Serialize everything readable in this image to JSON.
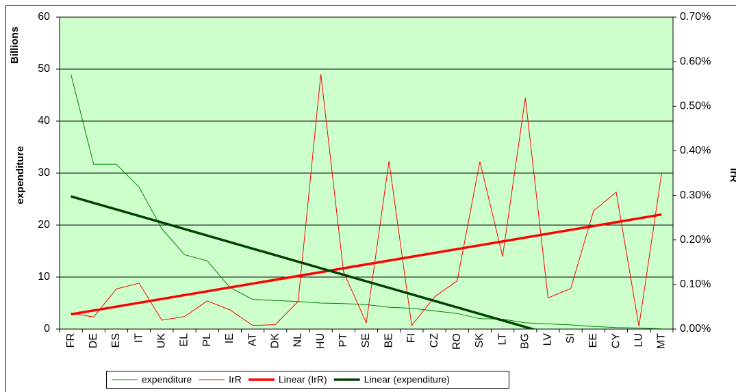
{
  "chart_data": {
    "type": "line",
    "categories": [
      "FR",
      "DE",
      "ES",
      "IT",
      "UK",
      "EL",
      "PL",
      "IE",
      "AT",
      "DK",
      "NL",
      "HU",
      "PT",
      "SE",
      "BE",
      "FI",
      "CZ",
      "RO",
      "SK",
      "LT",
      "BG",
      "LV",
      "SI",
      "EE",
      "CY",
      "LU",
      "MT"
    ],
    "y_label_top": "Billions",
    "y_label": "expenditure",
    "y2_label": "IrR",
    "ylim": [
      0,
      60
    ],
    "yticks": [
      0,
      10,
      20,
      30,
      40,
      50,
      60
    ],
    "y2lim": [
      0,
      0.7
    ],
    "y2ticks": [
      {
        "value": 0,
        "label": "0.00%"
      },
      {
        "value": 0.1,
        "label": "0.10%"
      },
      {
        "value": 0.2,
        "label": "0.20%"
      },
      {
        "value": 0.3,
        "label": "0.30%"
      },
      {
        "value": 0.4,
        "label": "0.40%"
      },
      {
        "value": 0.5,
        "label": "0.50%"
      },
      {
        "value": 0.6,
        "label": "0.60%"
      },
      {
        "value": 0.7,
        "label": "0.70%"
      }
    ],
    "grid": true,
    "background": "#ccffcc",
    "legend": "bottom",
    "series": [
      {
        "name": "expenditure",
        "color": "#008000",
        "values": [
          49,
          31.7,
          31.7,
          27.3,
          19.3,
          14.3,
          13.1,
          8,
          5.7,
          5.5,
          5.3,
          5.0,
          4.9,
          4.7,
          4.2,
          4.0,
          3.5,
          3.0,
          2.0,
          1.9,
          1.2,
          1.0,
          0.8,
          0.5,
          0.3,
          0.2,
          0.05
        ],
        "trendline": {
          "name": "Linear (expenditure)",
          "color": "#004000"
        }
      },
      {
        "name": "IrR",
        "color": "#ff0000",
        "axis": "y2",
        "values": [
          0.036,
          0.027,
          0.09,
          0.103,
          0.02,
          0.028,
          0.063,
          0.043,
          0.008,
          0.01,
          0.062,
          0.572,
          0.128,
          0.014,
          0.377,
          0.008,
          0.072,
          0.108,
          0.376,
          0.163,
          0.519,
          0.07,
          0.091,
          0.265,
          0.307,
          0.006,
          0.35
        ],
        "trendline": {
          "name": "Linear (IrR)",
          "color": "#ff0000"
        }
      }
    ]
  }
}
